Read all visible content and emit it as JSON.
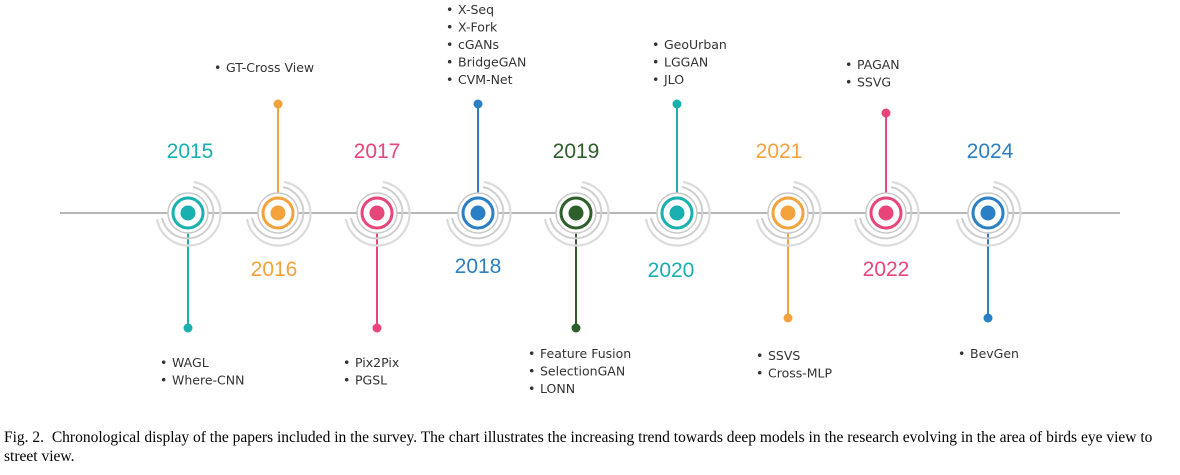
{
  "timeline": {
    "nodes": [
      {
        "year": "2015",
        "color": "#1ab0b0",
        "papers": [
          "WAGL",
          "Where-CNN"
        ]
      },
      {
        "year": "2016",
        "color": "#f4a23c",
        "papers": [
          "GT-Cross View"
        ]
      },
      {
        "year": "2017",
        "color": "#e8457a",
        "papers": [
          "Pix2Pix",
          "PGSL"
        ]
      },
      {
        "year": "2018",
        "color": "#2b7fc4",
        "papers": [
          "X-Seq",
          "X-Fork",
          "cGANs",
          "BridgeGAN",
          "CVM-Net"
        ]
      },
      {
        "year": "2019",
        "color": "#2e5e2a",
        "papers": [
          "Feature Fusion",
          "SelectionGAN",
          "LONN"
        ]
      },
      {
        "year": "2020",
        "color": "#1ab0b0",
        "papers": [
          "GeoUrban",
          "LGGAN",
          "JLO"
        ]
      },
      {
        "year": "2021",
        "color": "#f4a23c",
        "papers": [
          "SSVS",
          "Cross-MLP"
        ]
      },
      {
        "year": "2022",
        "color": "#e8457a",
        "papers": [
          "PAGAN",
          "SSVG"
        ]
      },
      {
        "year": "2024",
        "color": "#2b7fc4",
        "papers": [
          "BevGen"
        ]
      }
    ]
  },
  "caption": {
    "label": "Fig. 2.",
    "text": "Chronological display of the papers included in the survey. The chart illustrates the increasing trend towards deep models in the research evolving in the area of birds eye view to street view."
  }
}
